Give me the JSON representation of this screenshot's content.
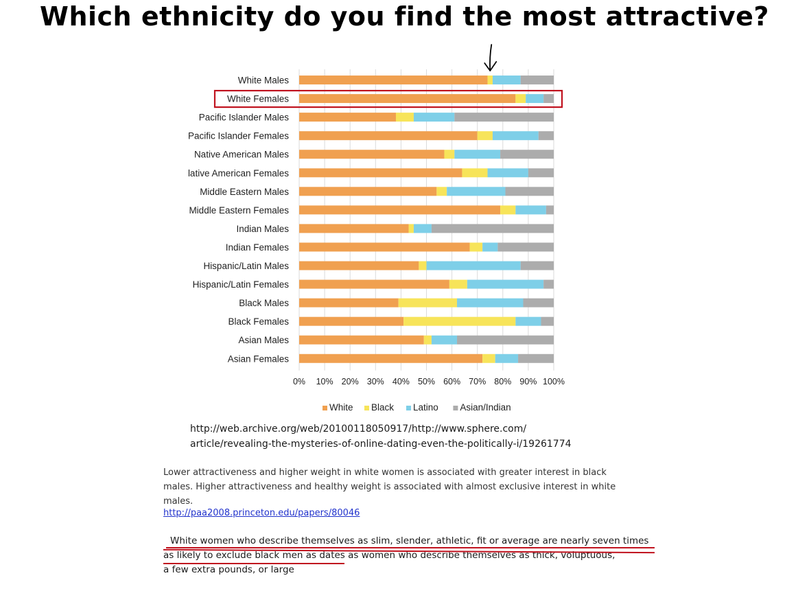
{
  "headline": "Which ethnicity do you find the most attractive?",
  "colors": {
    "White": "#f0a050",
    "Black": "#f7e45a",
    "Latino": "#7ecfe8",
    "Asian/Indian": "#acacac",
    "highlight": "#c0121e",
    "arrow": "#000000"
  },
  "chart_data": {
    "type": "bar",
    "orientation": "horizontal",
    "stacked": true,
    "percent": true,
    "categories": [
      "White Males",
      "White Females",
      "Pacific Islander Males",
      "Pacific Islander Females",
      "Native American Males",
      "lative American Females",
      "Middle Eastern Males",
      "Middle Eastern Females",
      "Indian Males",
      "Indian Females",
      "Hispanic/Latin Males",
      "Hispanic/Latin Females",
      "Black Males",
      "Black Females",
      "Asian Males",
      "Asian Females"
    ],
    "series": [
      {
        "name": "White",
        "values": [
          74,
          85,
          38,
          70,
          57,
          64,
          54,
          79,
          43,
          67,
          47,
          59,
          39,
          41,
          49,
          72
        ]
      },
      {
        "name": "Black",
        "values": [
          2,
          4,
          7,
          6,
          4,
          10,
          4,
          6,
          2,
          5,
          3,
          7,
          23,
          44,
          3,
          5
        ]
      },
      {
        "name": "Latino",
        "values": [
          11,
          7,
          16,
          18,
          18,
          16,
          23,
          12,
          7,
          6,
          37,
          30,
          26,
          10,
          10,
          9
        ]
      },
      {
        "name": "Asian/Indian",
        "values": [
          13,
          4,
          39,
          6,
          21,
          10,
          19,
          3,
          48,
          22,
          13,
          4,
          12,
          5,
          38,
          14
        ]
      }
    ],
    "xlim": [
      0,
      100
    ],
    "xticks": [
      "0%",
      "10%",
      "20%",
      "30%",
      "40%",
      "50%",
      "60%",
      "70%",
      "80%",
      "90%",
      "100%"
    ],
    "grid": true,
    "legend": "bottom",
    "highlighted_category": "White Females",
    "arrow_target": "White Males"
  },
  "source_url": {
    "line1": "http://web.archive.org/web/20100118050917/http://www.sphere.com/",
    "line2": "article/revealing-the-mysteries-of-online-dating-even-the-politically-i/19261774"
  },
  "quote": "Lower attractiveness and higher weight in white women is associated with greater interest in black males. Higher attractiveness and healthy weight is associated with almost exclusive interest in white males.",
  "link": "http://paa2008.princeton.edu/papers/80046",
  "claim": {
    "line1": "White women who describe themselves as slim, slender, athletic, fit or average are nearly seven times",
    "line2_underlined": "as likely to exclude black men as dates",
    "line2_rest": " as women who describe themselves as thick, voluptuous,",
    "line3": "a few extra pounds, or large"
  }
}
